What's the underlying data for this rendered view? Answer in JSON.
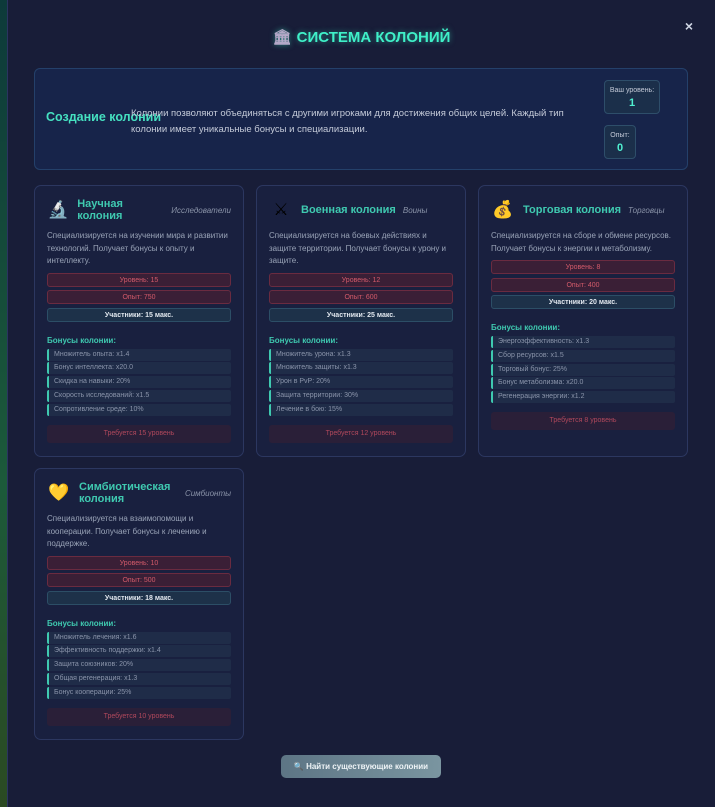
{
  "title": "СИСТЕМА КОЛОНИЙ",
  "title_icon": "classical-building-icon",
  "close_label": "×",
  "intro": {
    "heading": "Создание колонии",
    "text": "Колонии позволяют объединяться с другими игроками для достижения общих целей. Каждый тип колонии имеет уникальные бонусы и специализации.",
    "level_label": "Ваш уровень:",
    "level": "1",
    "exp_label": "Опыт:",
    "exp": "0"
  },
  "bonus_heading": "Бонусы колонии:",
  "colonies": [
    {
      "icon": "microscope-icon",
      "glyph": "🔬",
      "name": "Научная колония",
      "subtitle": "Исследователи",
      "desc": "Специализируется на изучении мира и развитии технологий. Получает бонусы к опыту и интеллекту.",
      "level": "Уровень: 15",
      "exp": "Опыт: 750",
      "members": "Участники: 15 макс.",
      "bonuses": [
        "Множитель опыта: x1.4",
        "Бонус интеллекта: x20.0",
        "Скидка на навыки: 20%",
        "Скорость исследований: x1.5",
        "Сопротивление среде: 10%"
      ],
      "requirement": "Требуется 15 уровень"
    },
    {
      "icon": "crossed-swords-icon",
      "glyph": "⚔",
      "name": "Военная колония",
      "subtitle": "Воины",
      "desc": "Специализируется на боевых действиях и защите территории. Получает бонусы к урону и защите.",
      "level": "Уровень: 12",
      "exp": "Опыт: 600",
      "members": "Участники: 25 макс.",
      "bonuses": [
        "Множитель урона: x1.3",
        "Множитель защиты: x1.3",
        "Урон в PvP: 20%",
        "Защита территории: 30%",
        "Лечение в бою: 15%"
      ],
      "requirement": "Требуется 12 уровень"
    },
    {
      "icon": "money-bag-icon",
      "glyph": "💰",
      "name": "Торговая колония",
      "subtitle": "Торговцы",
      "desc": "Специализируется на сборе и обмене ресурсов. Получает бонусы к энергии и метаболизму.",
      "level": "Уровень: 8",
      "exp": "Опыт: 400",
      "members": "Участники: 20 макс.",
      "bonuses": [
        "Энергоэффективность: x1.3",
        "Сбор ресурсов: x1.5",
        "Торговый бонус: 25%",
        "Бонус метаболизма: x20.0",
        "Регенерация энергии: x1.2"
      ],
      "requirement": "Требуется 8 уровень"
    },
    {
      "icon": "heart-icon",
      "glyph": "💛",
      "name": "Симбиотическая колония",
      "subtitle": "Симбионты",
      "desc": "Специализируется на взаимопомощи и кооперации. Получает бонусы к лечению и поддержке.",
      "level": "Уровень: 10",
      "exp": "Опыт: 500",
      "members": "Участники: 18 макс.",
      "bonuses": [
        "Множитель лечения: x1.6",
        "Эффективность поддержки: x1.4",
        "Защита союзников: 20%",
        "Общая регенерация: x1.3",
        "Бонус кооперации: 25%"
      ],
      "requirement": "Требуется 10 уровень"
    }
  ],
  "find_button": "Найти существующие колонии",
  "find_icon": "magnifier-icon"
}
